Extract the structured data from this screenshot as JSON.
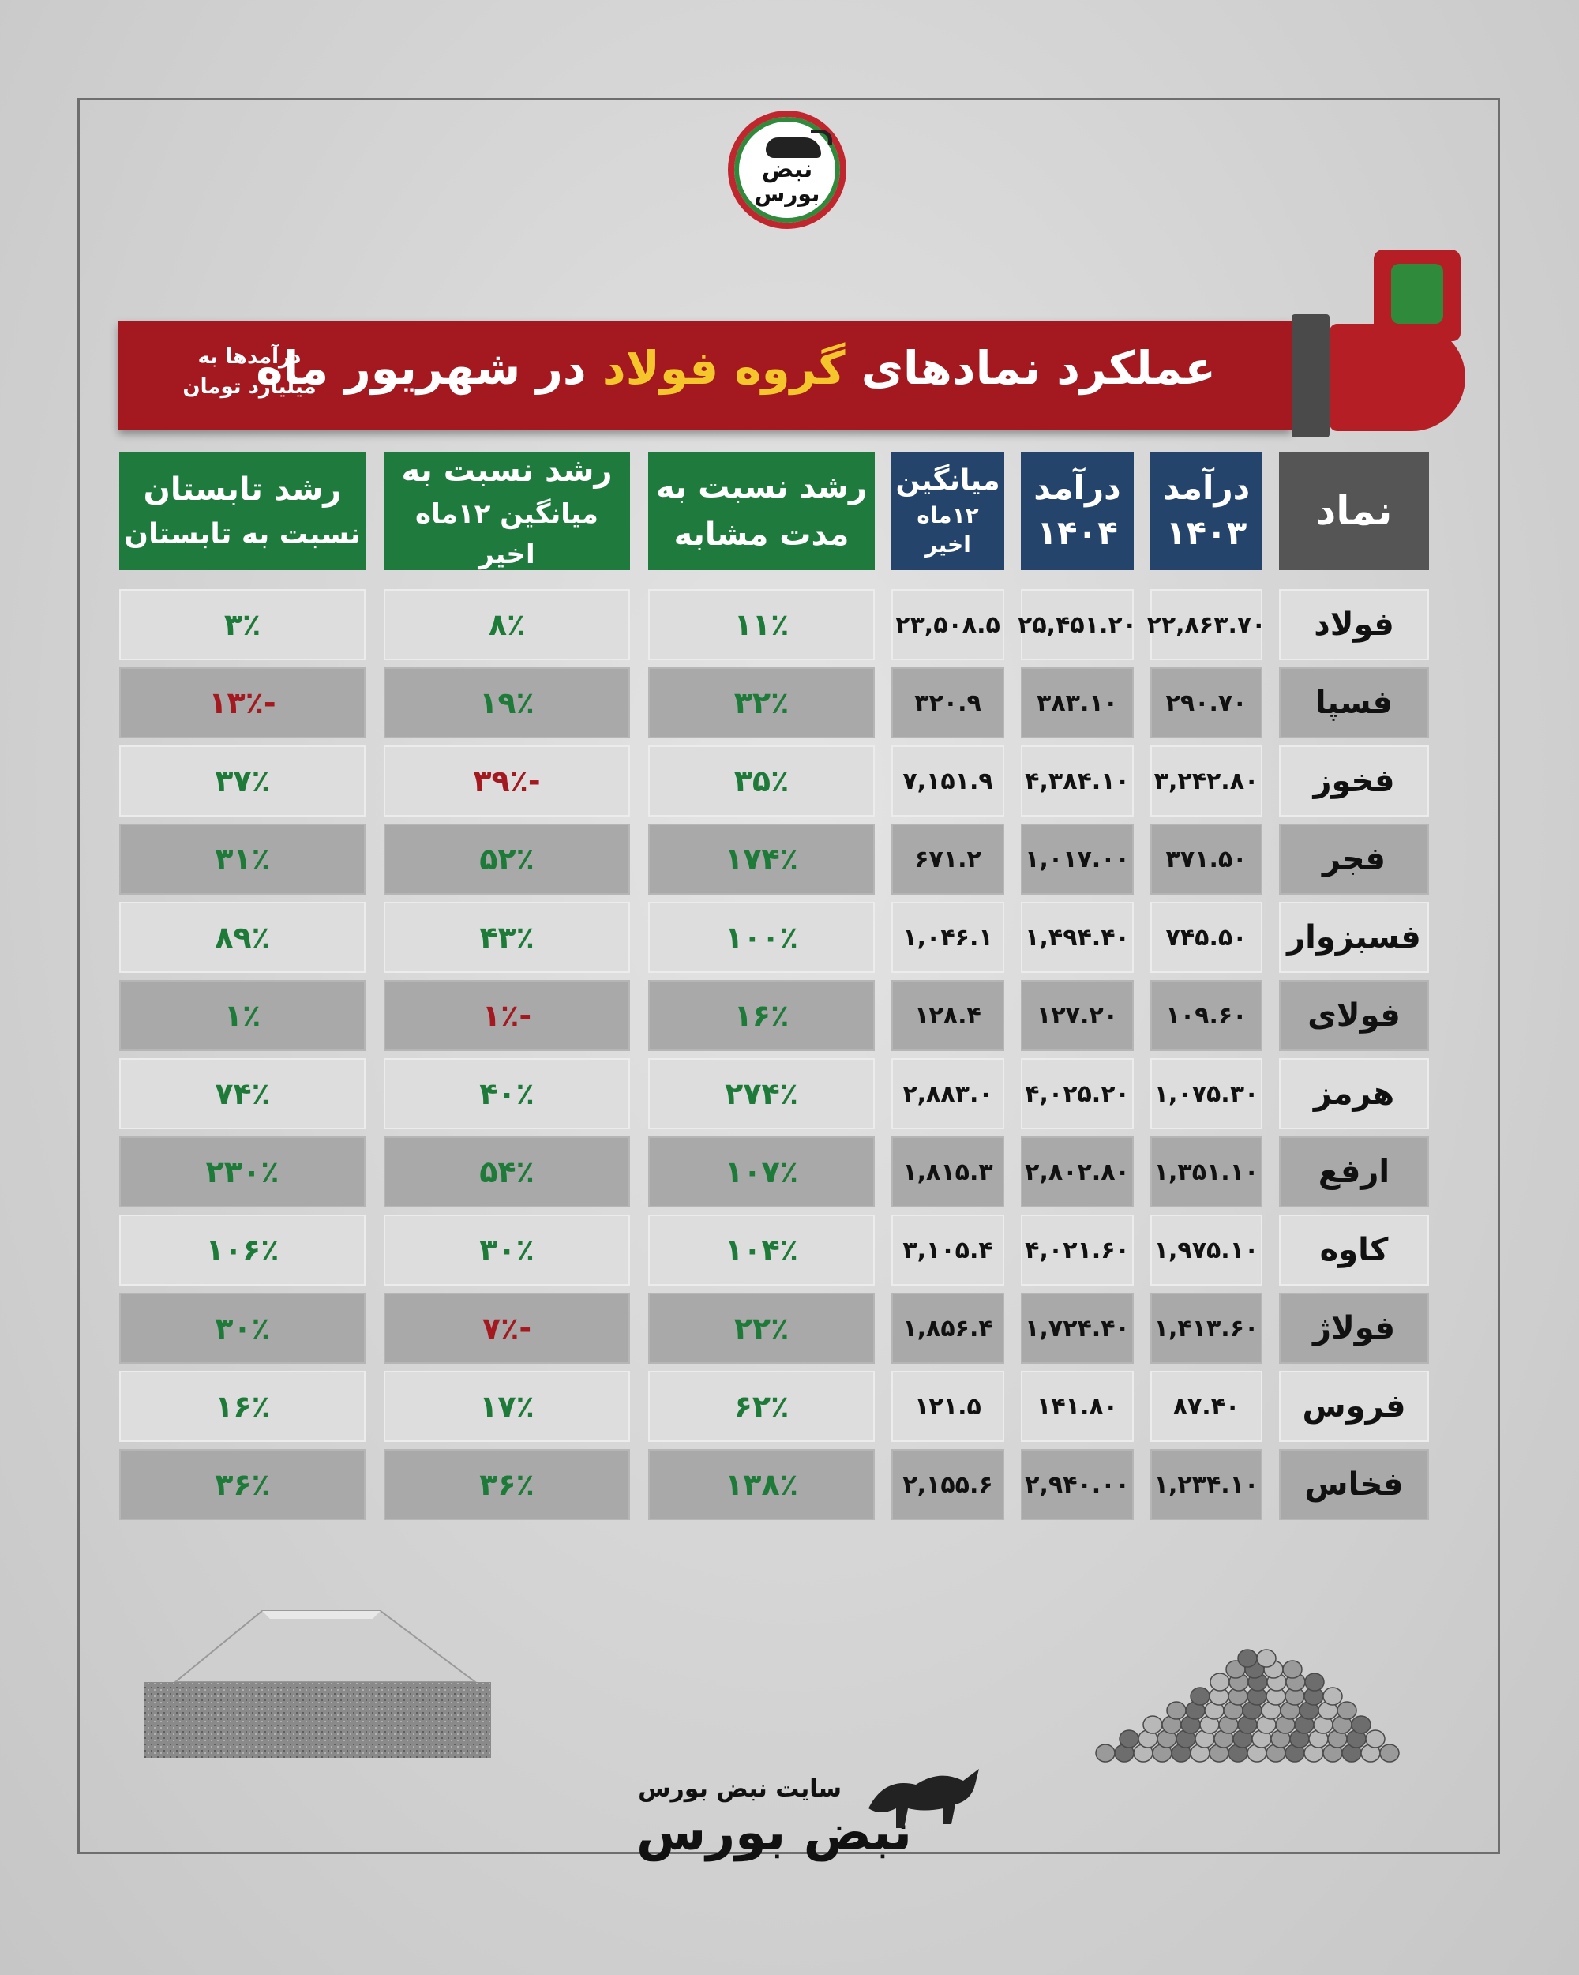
{
  "brand": {
    "logo_line1": "نبض",
    "logo_line2": "بورس",
    "site_label": "سایت نبض بورس",
    "brand_name": "نبض بورس"
  },
  "banner": {
    "title_part1": "عملکرد نمادهای",
    "title_highlight": "گروه فولاد",
    "title_part2": "در شهریور ماه",
    "unit_note": "درآمدها به میلیارد تومان"
  },
  "table": {
    "headers": {
      "symbol": "نماد",
      "rev1403_line1": "درآمد",
      "rev1403_line2": "۱۴۰۳",
      "rev1404_line1": "درآمد",
      "rev1404_line2": "۱۴۰۴",
      "avg_line1": "میانگین",
      "avg_line2": "۱۲ماه اخیر",
      "growth_same_line1": "رشد نسبت به",
      "growth_same_line2": "مدت مشابه",
      "growth_avg_line1": "رشد نسبت به",
      "growth_avg_line2": "میانگین ۱۲ماه اخیر",
      "growth_summer_line1": "رشد تابستان",
      "growth_summer_line2": "نسبت به تابستان"
    },
    "rows": [
      {
        "symbol": "فولاد",
        "rev1403": "۲۲,۸۶۳.۷۰",
        "rev1404": "۲۵,۴۵۱.۲۰",
        "avg": "۲۳,۵۰۸.۵",
        "g_same": "۱۱٪",
        "g_avg": "۸٪",
        "g_summer": "۳٪"
      },
      {
        "symbol": "فسپا",
        "rev1403": "۲۹۰.۷۰",
        "rev1404": "۳۸۳.۱۰",
        "avg": "۳۲۰.۹",
        "g_same": "۳۲٪",
        "g_avg": "۱۹٪",
        "g_summer": "-۱۳٪"
      },
      {
        "symbol": "فخوز",
        "rev1403": "۳,۲۴۲.۸۰",
        "rev1404": "۴,۳۸۴.۱۰",
        "avg": "۷,۱۵۱.۹",
        "g_same": "۳۵٪",
        "g_avg": "-۳۹٪",
        "g_summer": "۳۷٪"
      },
      {
        "symbol": "فجر",
        "rev1403": "۳۷۱.۵۰",
        "rev1404": "۱,۰۱۷.۰۰",
        "avg": "۶۷۱.۲",
        "g_same": "۱۷۴٪",
        "g_avg": "۵۲٪",
        "g_summer": "۳۱٪"
      },
      {
        "symbol": "فسبزوار",
        "rev1403": "۷۴۵.۵۰",
        "rev1404": "۱,۴۹۴.۴۰",
        "avg": "۱,۰۴۶.۱",
        "g_same": "۱۰۰٪",
        "g_avg": "۴۳٪",
        "g_summer": "۸۹٪"
      },
      {
        "symbol": "فولای",
        "rev1403": "۱۰۹.۶۰",
        "rev1404": "۱۲۷.۲۰",
        "avg": "۱۲۸.۴",
        "g_same": "۱۶٪",
        "g_avg": "-۱٪",
        "g_summer": "۱٪"
      },
      {
        "symbol": "هرمز",
        "rev1403": "۱,۰۷۵.۳۰",
        "rev1404": "۴,۰۲۵.۲۰",
        "avg": "۲,۸۸۳.۰",
        "g_same": "۲۷۴٪",
        "g_avg": "۴۰٪",
        "g_summer": "۷۴٪"
      },
      {
        "symbol": "ارفع",
        "rev1403": "۱,۳۵۱.۱۰",
        "rev1404": "۲,۸۰۲.۸۰",
        "avg": "۱,۸۱۵.۳",
        "g_same": "۱۰۷٪",
        "g_avg": "۵۴٪",
        "g_summer": "۲۳۰٪"
      },
      {
        "symbol": "کاوه",
        "rev1403": "۱,۹۷۵.۱۰",
        "rev1404": "۴,۰۲۱.۶۰",
        "avg": "۳,۱۰۵.۴",
        "g_same": "۱۰۴٪",
        "g_avg": "۳۰٪",
        "g_summer": "۱۰۶٪"
      },
      {
        "symbol": "فولاژ",
        "rev1403": "۱,۴۱۳.۶۰",
        "rev1404": "۱,۷۲۴.۴۰",
        "avg": "۱,۸۵۶.۴",
        "g_same": "۲۲٪",
        "g_avg": "-۷٪",
        "g_summer": "۳۰٪"
      },
      {
        "symbol": "فروس",
        "rev1403": "۸۷.۴۰",
        "rev1404": "۱۴۱.۸۰",
        "avg": "۱۲۱.۵",
        "g_same": "۶۲٪",
        "g_avg": "۱۷٪",
        "g_summer": "۱۶٪"
      },
      {
        "symbol": "فخاس",
        "rev1403": "۱,۲۳۴.۱۰",
        "rev1404": "۲,۹۴۰.۰۰",
        "avg": "۲,۱۵۵.۶",
        "g_same": "۱۳۸٪",
        "g_avg": "۳۶٪",
        "g_summer": "۳۶٪"
      }
    ]
  },
  "colors": {
    "banner_red": "#a4191f",
    "highlight_yellow": "#f5c52c",
    "header_blue": "#24446b",
    "header_green": "#1f7a3d",
    "header_gray": "#555555",
    "positive": "#1e7a38",
    "negative": "#a4191f"
  },
  "icons": {
    "logo": "bull-logo-icon",
    "hand": "hand-holding-phone-icon",
    "ingot": "steel-slab-icon",
    "pellets": "iron-pellets-icon"
  }
}
